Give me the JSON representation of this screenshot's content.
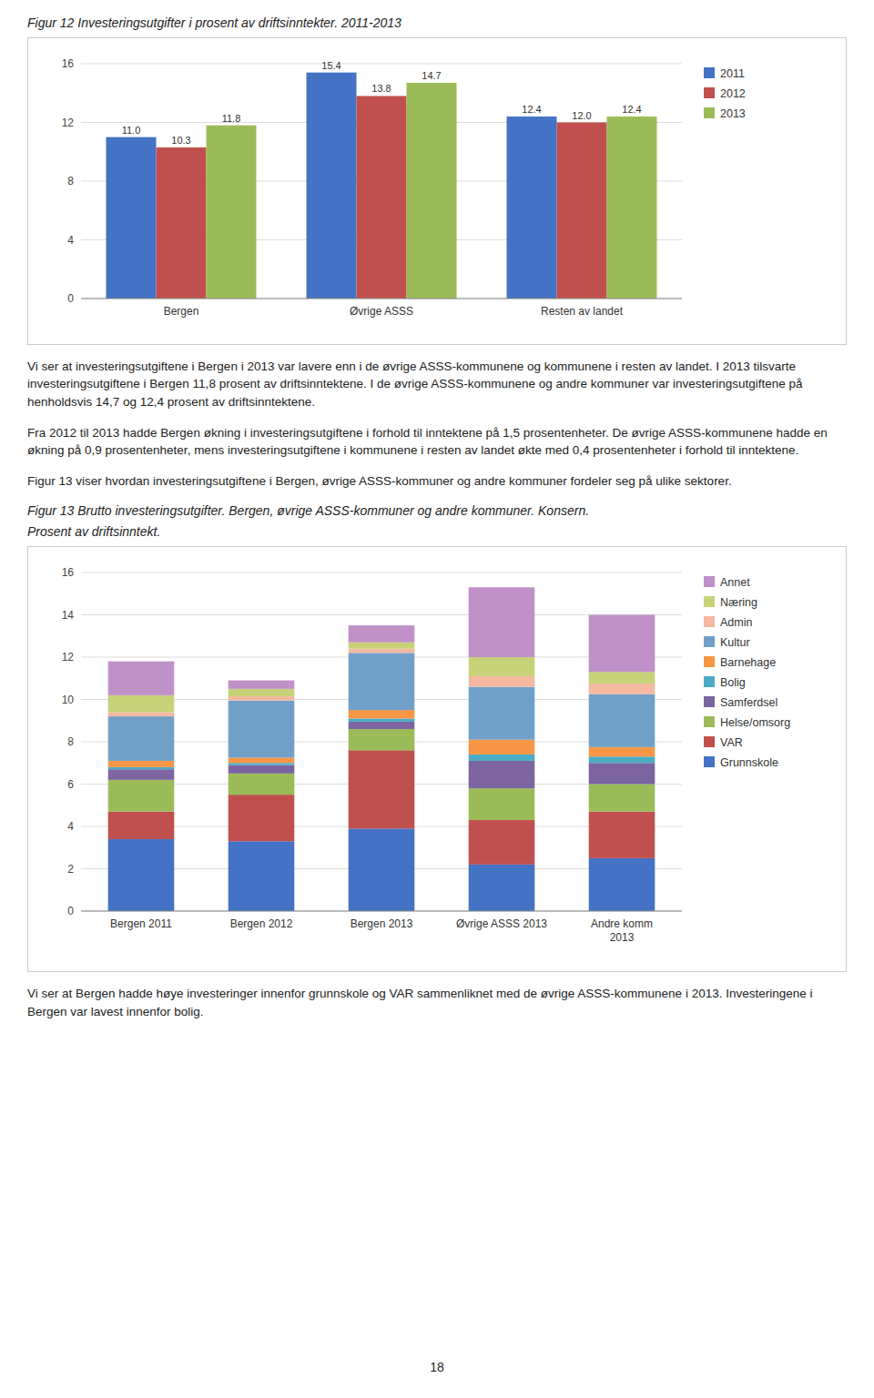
{
  "chart_data": [
    {
      "type": "bar",
      "title": "Figur 12 Investeringsutgifter i prosent av driftsinntekter. 2011-2013",
      "categories": [
        "Bergen",
        "Øvrige ASSS",
        "Resten av landet"
      ],
      "series": [
        {
          "name": "2011",
          "color": "#4472C4",
          "values": [
            11.0,
            15.4,
            12.4
          ],
          "value_labels": [
            "11.0",
            "15.4",
            "12.4"
          ]
        },
        {
          "name": "2012",
          "color": "#C0504D",
          "values": [
            10.3,
            13.8,
            12.0
          ],
          "value_labels": [
            "10.3",
            "13.8",
            "12.0"
          ]
        },
        {
          "name": "2013",
          "color": "#9BBB59",
          "values": [
            11.8,
            14.7,
            12.4
          ],
          "value_labels": [
            "11.8",
            "14.7",
            "12.4"
          ]
        }
      ],
      "ylim": [
        0,
        16
      ],
      "yticks": [
        0,
        4,
        8,
        12,
        16
      ],
      "grid": true,
      "legend": "right",
      "data_labels": true,
      "annotations": [
        "Vi ser at investeringsutgiftene i Bergen i 2013 var lavere enn i de øvrige ASSS-kommunene og kommunene i resten av landet. I 2013 tilsvarte investeringsutgiftene i Bergen 11,8 prosent av driftsinntektene. I de øvrige ASSS-kommunene og andre kommuner var investeringsutgiftene på henholdsvis 14,7 og 12,4 prosent av driftsinntektene.",
        "Fra 2012 til 2013 hadde Bergen økning i investeringsutgiftene i forhold til inntektene på 1,5 prosentenheter. De øvrige ASSS-kommunene hadde en økning på 0,9 prosentenheter, mens investeringsutgiftene i kommunene i resten av landet økte med 0,4 prosentenheter i forhold til inntektene.",
        "Figur 13 viser hvordan investeringsutgiftene i Bergen, øvrige ASSS-kommuner og andre kommuner fordeler seg på ulike sektorer."
      ]
    },
    {
      "type": "bar",
      "title": "Figur 13 Brutto investeringsutgifter. Bergen, øvrige ASSS-kommuner og andre kommuner. Konsern.",
      "subtitle": "Prosent av driftsinntekt.",
      "categories": [
        "Bergen 2011",
        "Bergen 2012",
        "Bergen 2013",
        "Øvrige ASSS 2013",
        "Andre komm\n2013"
      ],
      "series": [
        {
          "name": "Grunnskole",
          "color": "#4472C4",
          "values": [
            3.4,
            3.3,
            3.9,
            2.2,
            2.5
          ]
        },
        {
          "name": "VAR",
          "color": "#C0504D",
          "values": [
            1.3,
            2.2,
            3.7,
            2.1,
            2.2
          ]
        },
        {
          "name": "Helse/omsorg",
          "color": "#9BBB59",
          "values": [
            1.5,
            1.0,
            1.0,
            1.5,
            1.3
          ]
        },
        {
          "name": "Samferdsel",
          "color": "#7B64A0",
          "values": [
            0.5,
            0.4,
            0.35,
            1.3,
            1.0
          ]
        },
        {
          "name": "Bolig",
          "color": "#4BACC6",
          "values": [
            0.1,
            0.1,
            0.15,
            0.3,
            0.3
          ]
        },
        {
          "name": "Barnehage",
          "color": "#F79646",
          "values": [
            0.3,
            0.25,
            0.4,
            0.7,
            0.45
          ]
        },
        {
          "name": "Kultur",
          "color": "#70A0C8",
          "values": [
            2.1,
            2.7,
            2.7,
            2.5,
            2.5
          ]
        },
        {
          "name": "Admin",
          "color": "#F4B9A0",
          "values": [
            0.2,
            0.2,
            0.2,
            0.5,
            0.5
          ]
        },
        {
          "name": "Næring",
          "color": "#C8D278",
          "values": [
            0.8,
            0.35,
            0.3,
            0.9,
            0.55
          ]
        },
        {
          "name": "Annet",
          "color": "#C090C8",
          "values": [
            1.6,
            0.4,
            0.8,
            3.3,
            2.7
          ]
        }
      ],
      "ylim": [
        0,
        16
      ],
      "yticks": [
        0,
        2,
        4,
        6,
        8,
        10,
        12,
        14,
        16
      ],
      "grid": true,
      "legend": "right",
      "stacked": true,
      "annotations": [
        "Vi ser at Bergen hadde høye investeringer innenfor grunnskole og VAR sammenliknet med de øvrige ASSS-kommunene i 2013. Investeringene i Bergen var lavest innenfor bolig."
      ]
    }
  ],
  "page_number": "18"
}
